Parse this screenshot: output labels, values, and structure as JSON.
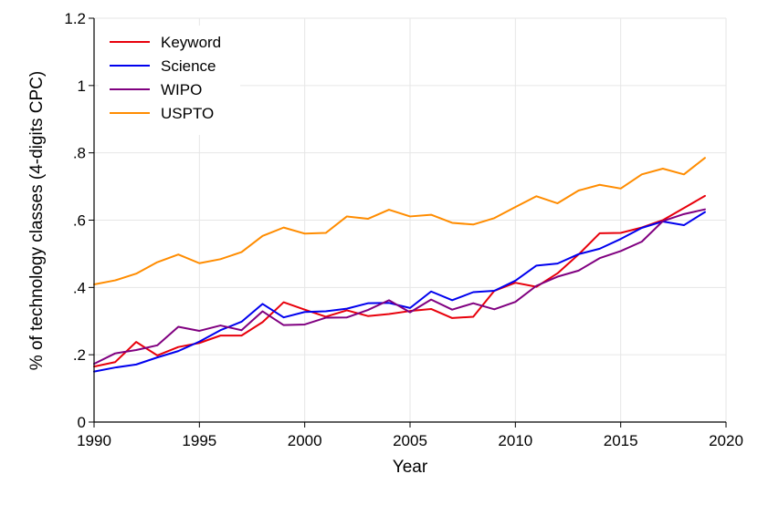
{
  "chart_data": {
    "type": "line",
    "title": "",
    "xlabel": "Year",
    "ylabel": "% of technology classes (4-digits CPC)",
    "xlim": [
      1990,
      2020
    ],
    "ylim": [
      0,
      1.2
    ],
    "grid": true,
    "legend_position": "top-left",
    "x_ticks": [
      {
        "value": 1990,
        "label": "1990"
      },
      {
        "value": 1995,
        "label": "1995"
      },
      {
        "value": 2000,
        "label": "2000"
      },
      {
        "value": 2005,
        "label": "2005"
      },
      {
        "value": 2010,
        "label": "2010"
      },
      {
        "value": 2015,
        "label": "2015"
      },
      {
        "value": 2020,
        "label": "2020"
      }
    ],
    "y_ticks": [
      {
        "value": 0,
        "label": "0"
      },
      {
        "value": 0.2,
        "label": ".2"
      },
      {
        "value": 0.4,
        "label": ".4"
      },
      {
        "value": 0.6,
        "label": ".6"
      },
      {
        "value": 0.8,
        "label": ".8"
      },
      {
        "value": 1,
        "label": "1"
      },
      {
        "value": 1.2,
        "label": "1.2"
      }
    ],
    "x": [
      1990,
      1991,
      1992,
      1993,
      1994,
      1995,
      1996,
      1997,
      1998,
      1999,
      2000,
      2001,
      2002,
      2003,
      2004,
      2005,
      2006,
      2007,
      2008,
      2009,
      2010,
      2011,
      2012,
      2013,
      2014,
      2015,
      2016,
      2017,
      2018,
      2019
    ],
    "series": [
      {
        "name": "Keyword",
        "color": "#e8000b",
        "values": [
          0.165,
          0.178,
          0.238,
          0.198,
          0.223,
          0.235,
          0.257,
          0.257,
          0.297,
          0.356,
          0.334,
          0.313,
          0.332,
          0.315,
          0.321,
          0.33,
          0.336,
          0.309,
          0.313,
          0.39,
          0.414,
          0.402,
          0.442,
          0.498,
          0.561,
          0.562,
          0.578,
          0.6,
          0.636,
          0.672
        ]
      },
      {
        "name": "Science",
        "color": "#0000ee",
        "values": [
          0.15,
          0.162,
          0.171,
          0.192,
          0.211,
          0.239,
          0.273,
          0.298,
          0.351,
          0.311,
          0.327,
          0.329,
          0.337,
          0.353,
          0.354,
          0.339,
          0.388,
          0.362,
          0.386,
          0.39,
          0.42,
          0.465,
          0.471,
          0.499,
          0.515,
          0.544,
          0.577,
          0.596,
          0.585,
          0.624
        ]
      },
      {
        "name": "WIPO",
        "color": "#800080",
        "values": [
          0.173,
          0.204,
          0.214,
          0.228,
          0.283,
          0.271,
          0.287,
          0.273,
          0.329,
          0.288,
          0.29,
          0.31,
          0.311,
          0.333,
          0.362,
          0.326,
          0.364,
          0.334,
          0.353,
          0.335,
          0.357,
          0.405,
          0.432,
          0.45,
          0.487,
          0.508,
          0.536,
          0.597,
          0.618,
          0.632
        ]
      },
      {
        "name": "USPTO",
        "color": "#ff8c00",
        "values": [
          0.409,
          0.421,
          0.441,
          0.475,
          0.498,
          0.472,
          0.484,
          0.505,
          0.553,
          0.578,
          0.56,
          0.562,
          0.611,
          0.604,
          0.631,
          0.611,
          0.616,
          0.592,
          0.587,
          0.606,
          0.639,
          0.671,
          0.65,
          0.688,
          0.705,
          0.694,
          0.736,
          0.753,
          0.736,
          0.785
        ]
      }
    ]
  }
}
